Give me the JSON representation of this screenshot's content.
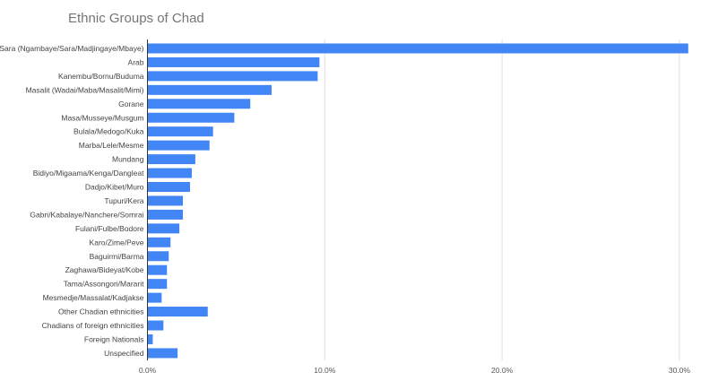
{
  "chart_data": {
    "type": "bar",
    "orientation": "horizontal",
    "title": "Ethnic Groups of Chad",
    "categories": [
      "Sara (Ngambaye/Sara/Madjingaye/Mbaye)",
      "Arab",
      "Kanembu/Bornu/Buduma",
      "Masalit (Wadai/Maba/Masalit/Mimi)",
      "Gorane",
      "Masa/Musseye/Musgum",
      "Bulala/Medogo/Kuka",
      "Marba/Lele/Mesme",
      "Mundang",
      "Bidiyo/Migaama/Kenga/Dangleat",
      "Dadjo/Kibet/Muro",
      "Tupuri/Kera",
      "Gabri/Kabalaye/Nanchere/Somrai",
      "Fulani/Fulbe/Bodore",
      "Karo/Zime/Peve",
      "Baguirmi/Barma",
      "Zaghawa/Bideyat/Kobe",
      "Tama/Assongori/Mararit",
      "Mesmedje/Massalat/Kadjakse",
      "Other Chadian ethnicities",
      "Chadians of foreign ethnicities",
      "Foreign Nationals",
      "Unspecified"
    ],
    "values": [
      30.5,
      9.7,
      9.6,
      7.0,
      5.8,
      4.9,
      3.7,
      3.5,
      2.7,
      2.5,
      2.4,
      2.0,
      2.0,
      1.8,
      1.3,
      1.2,
      1.1,
      1.1,
      0.8,
      3.4,
      0.9,
      0.3,
      1.7
    ],
    "xlim": [
      0,
      30.5
    ],
    "xticks": [
      0,
      10,
      20,
      30
    ],
    "xtick_labels": [
      "0.0%",
      "10.0%",
      "20.0%",
      "30.0%"
    ],
    "grid": true,
    "bar_color": "#4285f4"
  }
}
